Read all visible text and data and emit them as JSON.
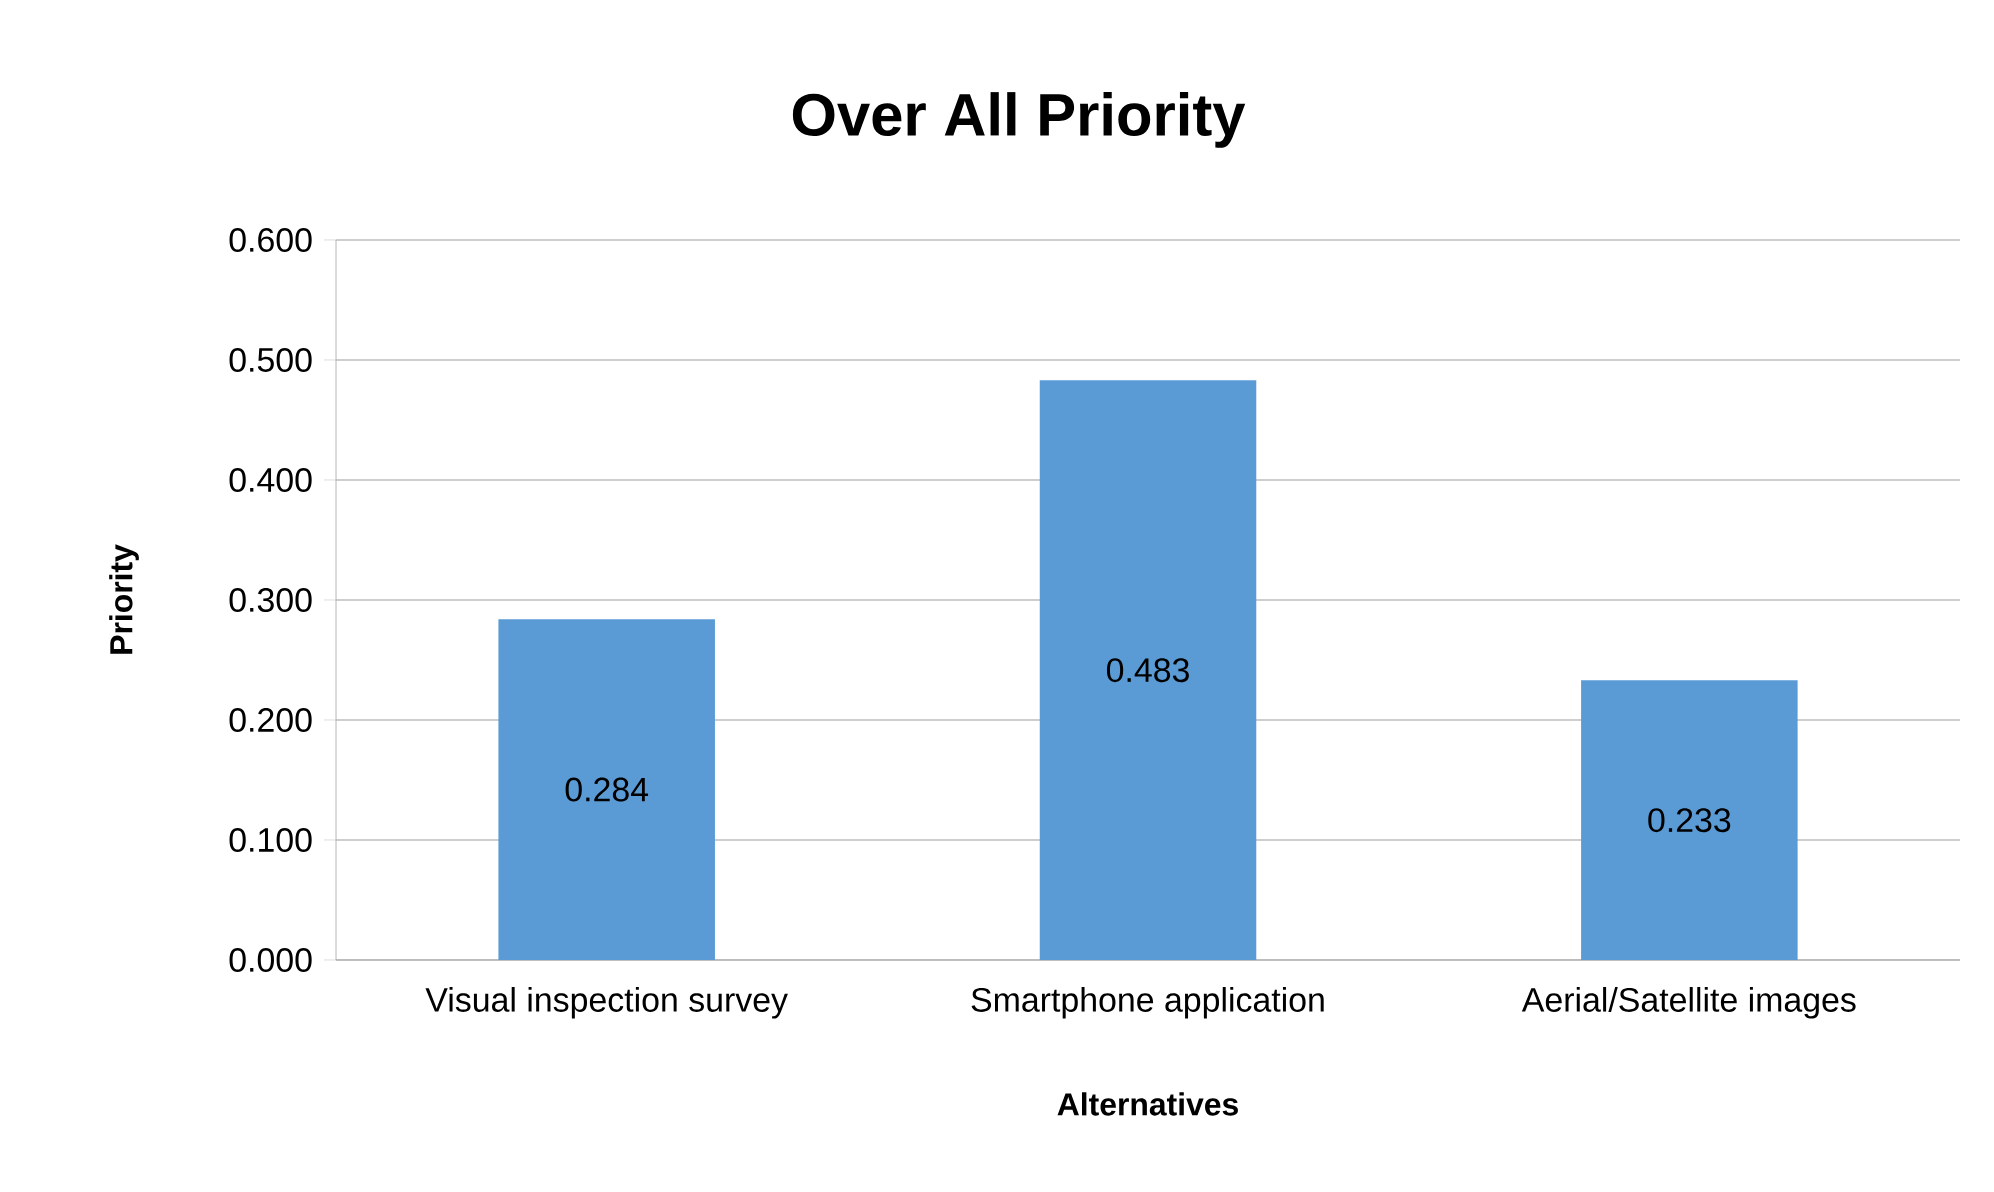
{
  "chart_data": {
    "type": "bar",
    "title": "Over All Priority",
    "xlabel": "Alternatives",
    "ylabel": "Priority",
    "categories": [
      "Visual inspection survey",
      "Smartphone application",
      "Aerial/Satellite images"
    ],
    "values": [
      0.284,
      0.483,
      0.233
    ],
    "color": "#5b9bd5",
    "data_labels": true,
    "grid": "y",
    "ylim": [
      0,
      0.6
    ],
    "yticks": [
      {
        "value": 0,
        "label": "0.000"
      },
      {
        "value": 0.1,
        "label": "0.100"
      },
      {
        "value": 0.2,
        "label": "0.200"
      },
      {
        "value": 0.3,
        "label": "0.300"
      },
      {
        "value": 0.4,
        "label": "0.400"
      },
      {
        "value": 0.5,
        "label": "0.500"
      },
      {
        "value": 0.6,
        "label": "0.600"
      }
    ]
  }
}
